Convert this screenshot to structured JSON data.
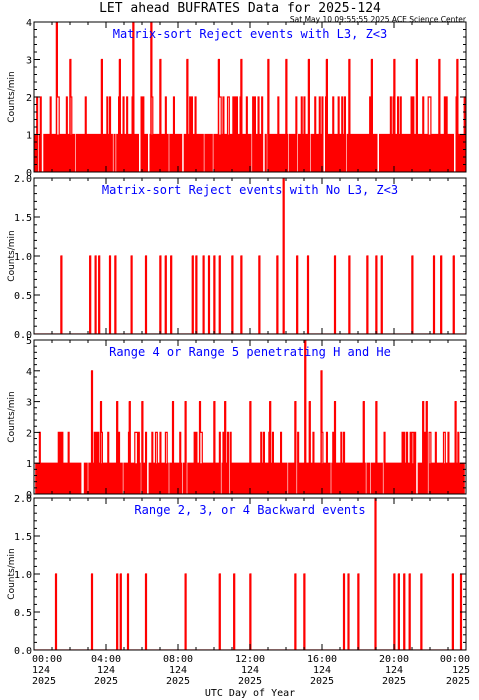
{
  "header": {
    "title": "LET ahead BUFRATES Data for 2025-124",
    "timestamp": "Sat May 10 09:55:55 2025 ACE Science Center"
  },
  "colors": {
    "data": "#ff0000",
    "title_text": "#0000ff",
    "axes": "#000000",
    "background": "#ffffff"
  },
  "xaxis": {
    "label": "UTC Day of Year",
    "ticks": [
      {
        "time": "00:00",
        "day": "124",
        "year": "2025"
      },
      {
        "time": "04:00",
        "day": "124",
        "year": "2025"
      },
      {
        "time": "08:00",
        "day": "124",
        "year": "2025"
      },
      {
        "time": "12:00",
        "day": "124",
        "year": "2025"
      },
      {
        "time": "16:00",
        "day": "124",
        "year": "2025"
      },
      {
        "time": "20:00",
        "day": "124",
        "year": "2025"
      },
      {
        "time": "00:00",
        "day": "125",
        "year": "2025"
      }
    ]
  },
  "chart_data": [
    {
      "type": "line",
      "title": "Matrix-sort Reject events with L3, Z<3",
      "ylabel": "Counts/min",
      "ylim": [
        0,
        4
      ],
      "yticks": [
        "0",
        "1",
        "2",
        "3",
        "4"
      ],
      "x_unit": "hour of day 124",
      "peaks": [
        [
          1.25,
          4
        ],
        [
          2.0,
          3
        ],
        [
          3.75,
          3
        ],
        [
          4.75,
          3
        ],
        [
          5.5,
          4
        ],
        [
          6.5,
          4
        ],
        [
          7.0,
          3
        ],
        [
          8.5,
          3
        ],
        [
          10.25,
          3
        ],
        [
          11.5,
          3
        ],
        [
          13.0,
          3
        ],
        [
          14.0,
          3
        ],
        [
          15.25,
          3
        ],
        [
          16.25,
          3
        ],
        [
          17.5,
          3
        ],
        [
          18.75,
          3
        ],
        [
          20.0,
          3
        ],
        [
          21.25,
          3
        ],
        [
          22.5,
          3
        ],
        [
          23.5,
          3
        ]
      ],
      "baseline": "counts mostly 0-1 with frequent 2s"
    },
    {
      "type": "line",
      "title": "Matrix-sort Reject events with No L3, Z<3",
      "ylabel": "Counts/min",
      "ylim": [
        0,
        2
      ],
      "yticks": [
        "0.0",
        "0.5",
        "1.0",
        "1.5",
        "2.0"
      ],
      "x_unit": "hour of day 124",
      "events": [
        [
          1.5,
          1
        ],
        [
          3.1,
          1
        ],
        [
          3.4,
          1
        ],
        [
          3.6,
          1
        ],
        [
          4.2,
          1
        ],
        [
          4.5,
          1
        ],
        [
          5.4,
          1
        ],
        [
          6.2,
          1
        ],
        [
          7.0,
          1
        ],
        [
          7.3,
          1
        ],
        [
          7.6,
          1
        ],
        [
          8.8,
          1
        ],
        [
          9.0,
          1
        ],
        [
          9.4,
          1
        ],
        [
          9.7,
          1
        ],
        [
          10.0,
          1
        ],
        [
          10.3,
          1
        ],
        [
          11.0,
          1
        ],
        [
          11.5,
          1
        ],
        [
          12.5,
          1
        ],
        [
          13.5,
          1
        ],
        [
          13.85,
          2
        ],
        [
          14.6,
          1
        ],
        [
          15.2,
          1
        ],
        [
          16.7,
          1
        ],
        [
          17.5,
          1
        ],
        [
          18.5,
          1
        ],
        [
          19.0,
          1
        ],
        [
          19.3,
          1
        ],
        [
          21.0,
          1
        ],
        [
          22.2,
          1
        ],
        [
          22.6,
          1
        ],
        [
          23.3,
          1
        ]
      ]
    },
    {
      "type": "line",
      "title": "Range 4 or Range 5 penetrating H and He",
      "ylabel": "Counts/min",
      "ylim": [
        0,
        5
      ],
      "yticks": [
        "0",
        "1",
        "2",
        "3",
        "4",
        "5"
      ],
      "x_unit": "hour of day 124",
      "peaks": [
        [
          3.2,
          4
        ],
        [
          3.7,
          3
        ],
        [
          4.6,
          3
        ],
        [
          5.3,
          3
        ],
        [
          6.0,
          3
        ],
        [
          7.7,
          3
        ],
        [
          8.4,
          3
        ],
        [
          9.2,
          3
        ],
        [
          10.0,
          3
        ],
        [
          10.6,
          3
        ],
        [
          12.0,
          3
        ],
        [
          13.1,
          3
        ],
        [
          14.5,
          3
        ],
        [
          15.05,
          5
        ],
        [
          15.3,
          3
        ],
        [
          15.95,
          4
        ],
        [
          16.7,
          3
        ],
        [
          18.3,
          3
        ],
        [
          19.0,
          3
        ],
        [
          21.6,
          3
        ],
        [
          21.8,
          3
        ],
        [
          23.4,
          3
        ]
      ],
      "baseline": "counts mostly 0-1 with frequent 2s"
    },
    {
      "type": "line",
      "title": "Range 2, 3, or 4 Backward events",
      "ylabel": "Counts/min",
      "ylim": [
        0,
        2
      ],
      "yticks": [
        "0.0",
        "0.5",
        "1.0",
        "1.5",
        "2.0"
      ],
      "x_unit": "hour of day 124",
      "events": [
        [
          1.2,
          1
        ],
        [
          3.2,
          1
        ],
        [
          4.6,
          1
        ],
        [
          4.8,
          1
        ],
        [
          5.2,
          1
        ],
        [
          6.2,
          1
        ],
        [
          8.4,
          1
        ],
        [
          10.3,
          1
        ],
        [
          11.1,
          1
        ],
        [
          12.0,
          1
        ],
        [
          14.5,
          1
        ],
        [
          15.0,
          1
        ],
        [
          17.2,
          1
        ],
        [
          17.45,
          1
        ],
        [
          18.0,
          1
        ],
        [
          18.95,
          2
        ],
        [
          20.0,
          1
        ],
        [
          20.25,
          1
        ],
        [
          20.55,
          1
        ],
        [
          20.85,
          1
        ],
        [
          21.5,
          1
        ],
        [
          23.25,
          1
        ],
        [
          23.7,
          1
        ]
      ]
    }
  ]
}
